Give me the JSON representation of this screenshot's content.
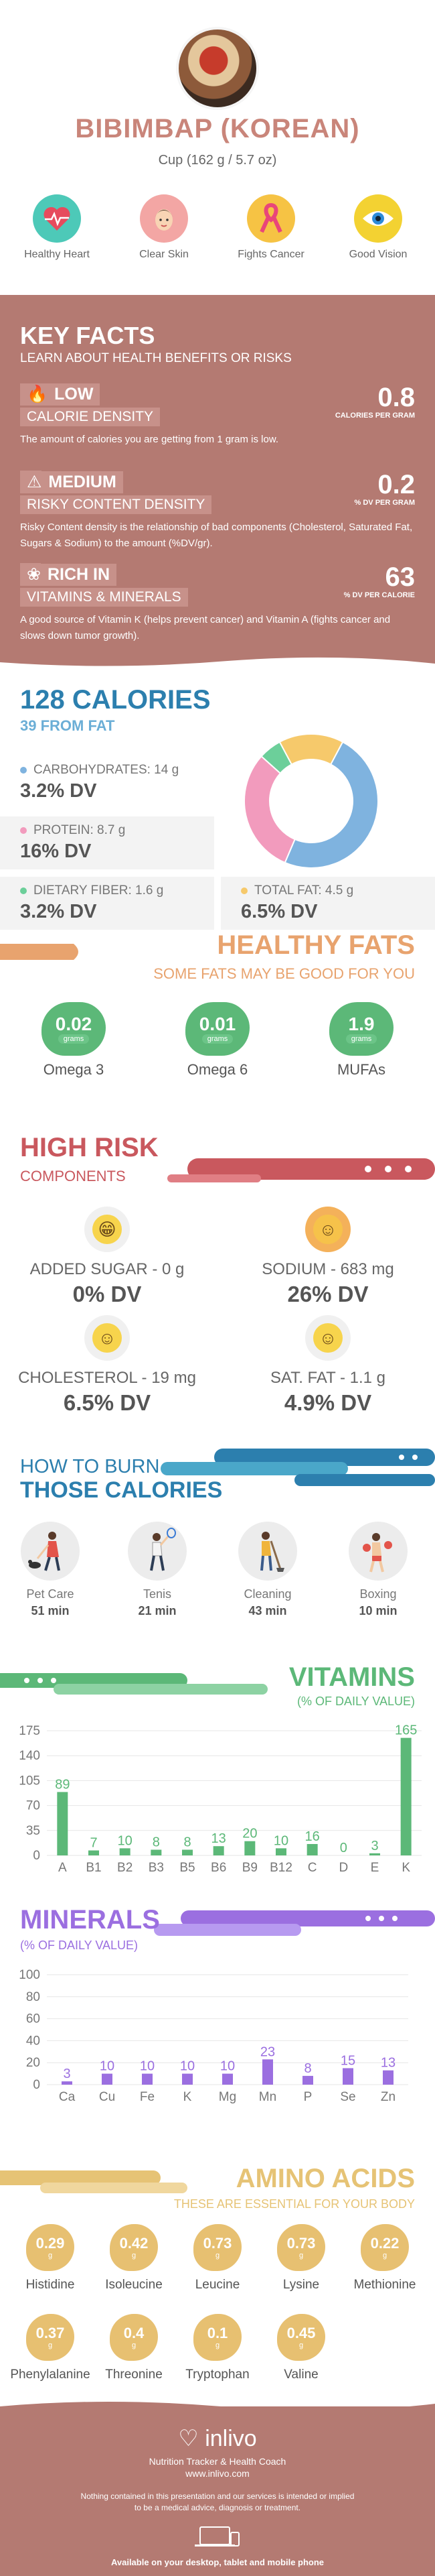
{
  "header": {
    "title": "BIBIMBAP (KOREAN)",
    "serving": "Cup (162 g / 5.7 oz)",
    "benefits": [
      {
        "label": "Healthy Heart",
        "icon": "heart-pulse-icon",
        "color": "#4dc9b8"
      },
      {
        "label": "Clear Skin",
        "icon": "face-icon",
        "color": "#f3a6a4"
      },
      {
        "label": "Fights Cancer",
        "icon": "ribbon-icon",
        "color": "#f6c344"
      },
      {
        "label": "Good Vision",
        "icon": "eye-icon",
        "color": "#f3d232"
      }
    ]
  },
  "key_facts": {
    "title": "KEY FACTS",
    "subtitle": "LEARN ABOUT HEALTH BENEFITS OR RISKS",
    "items": [
      {
        "level": "LOW",
        "name": "CALORIE DENSITY",
        "value": "0.8",
        "unit": "CALORIES PER GRAM",
        "description": "The amount of calories you are getting from 1 gram is low."
      },
      {
        "level": "MEDIUM",
        "name": "RISKY CONTENT DENSITY",
        "value": "0.2",
        "unit": "% DV PER GRAM",
        "description": "Risky Content density is the relationship of bad components (Cholesterol, Saturated Fat, Sugars & Sodium) to the amount (%DV/gr)."
      },
      {
        "level": "RICH IN",
        "name": "VITAMINS & MINERALS",
        "value": "63",
        "unit": "% DV PER CALORIE",
        "description": "A good source of Vitamin K (helps prevent cancer) and Vitamin A (fights cancer and slows down tumor growth)."
      }
    ]
  },
  "calories": {
    "title": "128 CALORIES",
    "from_fat": "39 FROM FAT",
    "macros": [
      {
        "label": "CARBOHYDRATES: 14 g",
        "dv": "3.2% DV",
        "color": "#7fb3df",
        "grams": 14
      },
      {
        "label": "PROTEIN: 8.7 g",
        "dv": "16% DV",
        "color": "#f29bbd",
        "grams": 8.7
      },
      {
        "label": "DIETARY FIBER: 1.6 g",
        "dv": "3.2% DV",
        "color": "#6ccf9a",
        "grams": 1.6
      },
      {
        "label": "TOTAL FAT: 4.5 g",
        "dv": "6.5% DV",
        "color": "#f6c96b",
        "grams": 4.5
      }
    ]
  },
  "healthy_fats": {
    "title": "HEALTHY FATS",
    "subtitle": "SOME FATS MAY BE GOOD FOR YOU",
    "unit": "grams",
    "items": [
      {
        "value": "0.02",
        "name": "Omega 3"
      },
      {
        "value": "0.01",
        "name": "Omega 6"
      },
      {
        "value": "1.9",
        "name": "MUFAs"
      }
    ]
  },
  "high_risk": {
    "title": "HIGH RISK",
    "subtitle": "COMPONENTS",
    "items": [
      {
        "label": "ADDED SUGAR - 0 g",
        "dv": "0% DV",
        "face": "grin"
      },
      {
        "label": "SODIUM - 683 mg",
        "dv": "26% DV",
        "face": "smile"
      },
      {
        "label": "CHOLESTEROL - 19 mg",
        "dv": "6.5% DV",
        "face": "smile"
      },
      {
        "label": "SAT. FAT - 1.1 g",
        "dv": "4.9% DV",
        "face": "smile"
      }
    ]
  },
  "burn": {
    "title_line1": "HOW TO BURN",
    "title_line2": "THOSE CALORIES",
    "activities": [
      {
        "name": "Pet Care",
        "minutes": "51 min",
        "icon": "dog-walking-icon"
      },
      {
        "name": "Tenis",
        "minutes": "21 min",
        "icon": "tennis-icon"
      },
      {
        "name": "Cleaning",
        "minutes": "43 min",
        "icon": "cleaning-icon"
      },
      {
        "name": "Boxing",
        "minutes": "10 min",
        "icon": "boxing-icon"
      }
    ]
  },
  "vitamins": {
    "title": "VITAMINS",
    "subtitle": "(% OF DAILY VALUE)",
    "chart_data": {
      "type": "bar",
      "categories": [
        "A",
        "B1",
        "B2",
        "B3",
        "B5",
        "B6",
        "B9",
        "B12",
        "C",
        "D",
        "E",
        "K"
      ],
      "values": [
        89,
        7,
        10,
        8,
        8,
        13,
        20,
        10,
        16,
        0,
        3,
        165
      ],
      "yticks": [
        0,
        35,
        70,
        105,
        140,
        175
      ],
      "ylim": [
        0,
        175
      ],
      "color": "#5cb878",
      "grid": true
    }
  },
  "minerals": {
    "title": "MINERALS",
    "subtitle": "(% OF DAILY VALUE)",
    "chart_data": {
      "type": "bar",
      "categories": [
        "Ca",
        "Cu",
        "Fe",
        "K",
        "Mg",
        "Mn",
        "P",
        "Se",
        "Zn"
      ],
      "values": [
        3,
        10,
        10,
        10,
        10,
        23,
        8,
        15,
        13
      ],
      "yticks": [
        0,
        20,
        40,
        60,
        80,
        100
      ],
      "ylim": [
        0,
        100
      ],
      "color": "#9b6fe0",
      "grid": true
    }
  },
  "amino_acids": {
    "title": "AMINO ACIDS",
    "subtitle": "THESE ARE ESSENTIAL FOR YOUR BODY",
    "unit": "g",
    "items": [
      {
        "value": "0.29",
        "name": "Histidine"
      },
      {
        "value": "0.42",
        "name": "Isoleucine"
      },
      {
        "value": "0.73",
        "name": "Leucine"
      },
      {
        "value": "0.73",
        "name": "Lysine"
      },
      {
        "value": "0.22",
        "name": "Methionine"
      },
      {
        "value": "0.37",
        "name": "Phenylalanine"
      },
      {
        "value": "0.4",
        "name": "Threonine"
      },
      {
        "value": "0.1",
        "name": "Tryptophan"
      },
      {
        "value": "0.45",
        "name": "Valine"
      }
    ]
  },
  "footer": {
    "brand": "inlivo",
    "tagline": "Nutrition Tracker & Health Coach",
    "website": "www.inlivo.com",
    "disclaimer": "Nothing contained in this presentation and our services is intended or implied to be a medical advice, diagnosis or treatment.",
    "available": "Available on your desktop, tablet and mobile phone"
  },
  "colors": {
    "accent_rose": "#b47a72",
    "blue": "#2c7fae",
    "orange": "#e8a36e",
    "red": "#c9585e",
    "green": "#5cb878",
    "purple": "#9b6fe0",
    "gold": "#e6c375"
  }
}
